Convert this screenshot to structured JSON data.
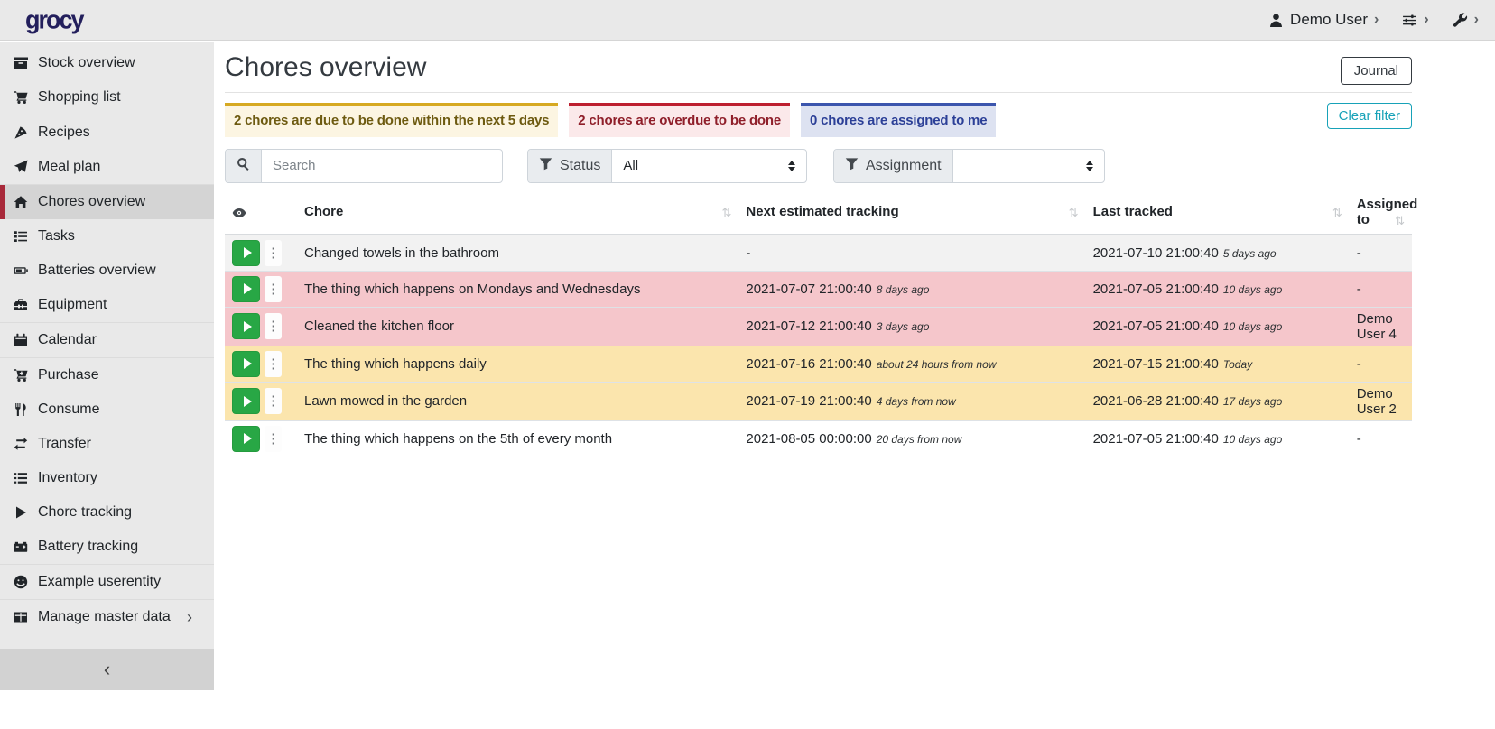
{
  "navbar": {
    "logo_text": "grocy",
    "user_label": "Demo User"
  },
  "sidebar": {
    "groups": [
      {
        "items": [
          {
            "label": "Stock overview",
            "icon": "box-icon"
          },
          {
            "label": "Shopping list",
            "icon": "shopping-cart-icon"
          }
        ]
      },
      {
        "items": [
          {
            "label": "Recipes",
            "icon": "pizza-slice-icon"
          },
          {
            "label": "Meal plan",
            "icon": "paper-plane-icon"
          }
        ]
      },
      {
        "items": [
          {
            "label": "Chores overview",
            "icon": "home-icon",
            "active": true
          },
          {
            "label": "Tasks",
            "icon": "checklist-icon"
          },
          {
            "label": "Batteries overview",
            "icon": "battery-icon"
          },
          {
            "label": "Equipment",
            "icon": "toolbox-icon"
          }
        ]
      },
      {
        "items": [
          {
            "label": "Calendar",
            "icon": "calendar-icon"
          }
        ]
      },
      {
        "items": [
          {
            "label": "Purchase",
            "icon": "cart-plus-icon"
          },
          {
            "label": "Consume",
            "icon": "utensils-icon"
          },
          {
            "label": "Transfer",
            "icon": "exchange-icon"
          },
          {
            "label": "Inventory",
            "icon": "list-icon"
          },
          {
            "label": "Chore tracking",
            "icon": "play-icon"
          },
          {
            "label": "Battery tracking",
            "icon": "car-battery-icon"
          }
        ]
      },
      {
        "items": [
          {
            "label": "Example userentity",
            "icon": "smiley-icon"
          }
        ]
      },
      {
        "items": [
          {
            "label": "Manage master data",
            "icon": "table-icon",
            "chevron": true
          }
        ]
      }
    ]
  },
  "page": {
    "title": "Chores overview",
    "journal_button": "Journal",
    "clear_filter_button": "Clear filter"
  },
  "banners": [
    {
      "type": "warning",
      "text": "2 chores are due to be done within the next 5 days"
    },
    {
      "type": "danger",
      "text": "2 chores are overdue to be done"
    },
    {
      "type": "info",
      "text": "0 chores are assigned to me"
    }
  ],
  "filters": {
    "search_placeholder": "Search",
    "status_label": "Status",
    "status_value": "All",
    "assignment_label": "Assignment",
    "assignment_value": ""
  },
  "table": {
    "headers": [
      "Chore",
      "Next estimated tracking",
      "Last tracked",
      "Assigned to"
    ],
    "rows": [
      {
        "chore": "Changed towels in the bathroom",
        "next": "-",
        "next_ago": "",
        "last": "2021-07-10 21:00:40",
        "last_ago": "5 days ago",
        "assigned": "-",
        "status": "default"
      },
      {
        "chore": "The thing which happens on Mondays and Wednesdays",
        "next": "2021-07-07 21:00:40",
        "next_ago": "8 days ago",
        "last": "2021-07-05 21:00:40",
        "last_ago": "10 days ago",
        "assigned": "-",
        "status": "danger"
      },
      {
        "chore": "Cleaned the kitchen floor",
        "next": "2021-07-12 21:00:40",
        "next_ago": "3 days ago",
        "last": "2021-07-05 21:00:40",
        "last_ago": "10 days ago",
        "assigned": "Demo User 4",
        "status": "danger"
      },
      {
        "chore": "The thing which happens daily",
        "next": "2021-07-16 21:00:40",
        "next_ago": "about 24 hours from now",
        "last": "2021-07-15 21:00:40",
        "last_ago": "Today",
        "assigned": "-",
        "status": "warning"
      },
      {
        "chore": "Lawn mowed in the garden",
        "next": "2021-07-19 21:00:40",
        "next_ago": "4 days from now",
        "last": "2021-06-28 21:00:40",
        "last_ago": "17 days ago",
        "assigned": "Demo User 2",
        "status": "warning"
      },
      {
        "chore": "The thing which happens on the 5th of every month",
        "next": "2021-08-05 00:00:00",
        "next_ago": "20 days from now",
        "last": "2021-07-05 21:00:40",
        "last_ago": "10 days ago",
        "assigned": "-",
        "status": "default"
      }
    ]
  },
  "colors": {
    "navbar_bg": "#e9e9e9",
    "logo": "#231f5c",
    "sidebar_active_border": "#a8293a",
    "success_green": "#28a745",
    "teal_accent": "#17a2b8",
    "banner_warning_border": "#d6a922",
    "banner_danger_border": "#bd1f2f",
    "banner_info_border": "#3b55ad",
    "row_danger": "#f5c6cb",
    "row_warning": "#fbe5ad",
    "row_striped": "#f2f2f2"
  }
}
